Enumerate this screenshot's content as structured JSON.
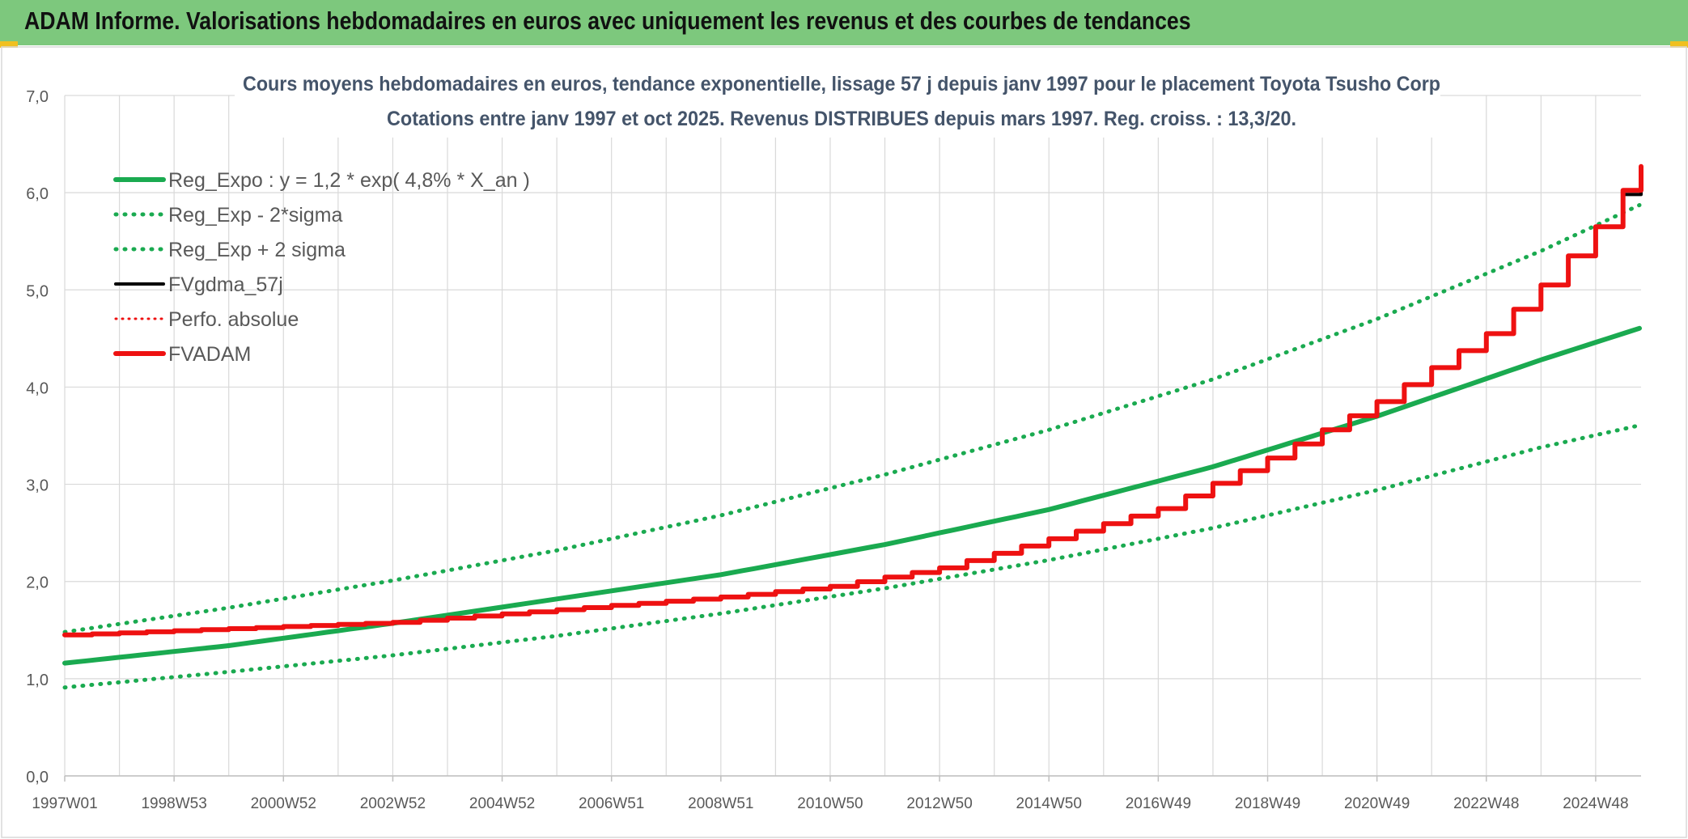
{
  "banner": {
    "title": "ADAM Informe. Valorisations hebdomadaires en euros avec uniquement les revenus et des courbes de tendances"
  },
  "colors": {
    "banner": "#7dc87d",
    "reg_green": "#1aaa50",
    "fv_black": "#000000",
    "adam_red": "#ee1111"
  },
  "chart_data": {
    "type": "line",
    "title": [
      "Cours moyens hebdomadaires en euros, tendance exponentielle, lissage 57 j depuis janv 1997 pour le placement Toyota Tsusho Corp",
      "Cotations entre janv 1997 et oct 2025. Revenus DISTRIBUES depuis mars 1997. Reg. croiss. : 13,3/20."
    ],
    "xlabel": "",
    "ylabel": "",
    "x_tick_labels": [
      "1997W01",
      "1998W53",
      "2000W52",
      "2002W52",
      "2004W52",
      "2006W51",
      "2008W51",
      "2010W50",
      "2012W50",
      "2014W50",
      "2016W49",
      "2018W49",
      "2020W49",
      "2022W48",
      "2024W48"
    ],
    "x_tick_years": [
      1997.0,
      1999.0,
      2001.0,
      2003.0,
      2005.0,
      2007.0,
      2009.0,
      2011.0,
      2013.0,
      2015.0,
      2017.0,
      2019.0,
      2021.0,
      2023.0,
      2025.0
    ],
    "xlim": [
      1997.0,
      2025.83
    ],
    "ylim": [
      0,
      7
    ],
    "y_ticks": [
      "0,0",
      "1,0",
      "2,0",
      "3,0",
      "4,0",
      "5,0",
      "6,0",
      "7,0"
    ],
    "grid": true,
    "legend_position": "top-left",
    "series": [
      {
        "name": "Reg_Expo : y = 1,2 * exp( 4,8% *  X_an )",
        "style": "solid-green",
        "x": [
          1997.0,
          2000.0,
          2003.0,
          2006.0,
          2009.0,
          2012.0,
          2015.0,
          2018.0,
          2021.0,
          2024.0,
          2025.83
        ],
        "y": [
          1.16,
          1.34,
          1.57,
          1.82,
          2.07,
          2.38,
          2.74,
          3.18,
          3.7,
          4.28,
          4.61
        ]
      },
      {
        "name": "Reg_Exp - 2*sigma",
        "style": "dotted-green",
        "x": [
          1997.0,
          2000.0,
          2003.0,
          2006.0,
          2009.0,
          2012.0,
          2015.0,
          2018.0,
          2021.0,
          2024.0,
          2025.83
        ],
        "y": [
          0.91,
          1.07,
          1.24,
          1.44,
          1.67,
          1.93,
          2.22,
          2.55,
          2.94,
          3.38,
          3.61
        ]
      },
      {
        "name": "Reg_Exp + 2 sigma",
        "style": "dotted-green",
        "x": [
          1997.0,
          2000.0,
          2003.0,
          2006.0,
          2009.0,
          2012.0,
          2015.0,
          2018.0,
          2021.0,
          2024.0,
          2025.83
        ],
        "y": [
          1.48,
          1.73,
          2.01,
          2.32,
          2.68,
          3.1,
          3.56,
          4.08,
          4.7,
          5.4,
          5.88
        ]
      },
      {
        "name": "FVgdma_57j",
        "style": "solid-black",
        "x": [
          1997.0,
          2003.0,
          2009.0,
          2011.0,
          2013.0,
          2015.0,
          2017.0,
          2019.0,
          2021.0,
          2023.0,
          2024.0,
          2025.0,
          2025.83
        ],
        "y": [
          1.45,
          1.58,
          1.84,
          1.95,
          2.14,
          2.44,
          2.75,
          3.27,
          3.85,
          4.55,
          5.05,
          5.65,
          6.2
        ]
      },
      {
        "name": "Perfo. absolue",
        "style": "dotted-red",
        "x": [],
        "y": []
      },
      {
        "name": "FVADAM",
        "style": "solid-red",
        "x": [
          1997.0,
          2003.0,
          2009.0,
          2011.0,
          2013.0,
          2015.0,
          2017.0,
          2019.0,
          2021.0,
          2023.0,
          2024.0,
          2025.0,
          2025.83
        ],
        "y": [
          1.45,
          1.58,
          1.84,
          1.95,
          2.14,
          2.44,
          2.75,
          3.27,
          3.85,
          4.55,
          5.05,
          5.65,
          6.27
        ]
      }
    ]
  }
}
